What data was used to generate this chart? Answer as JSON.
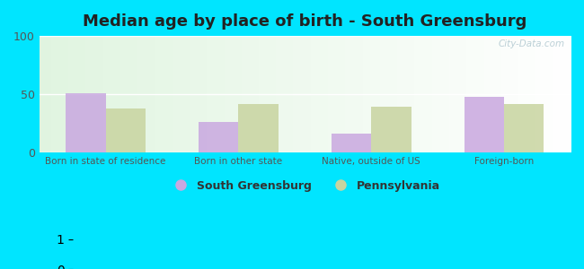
{
  "title": "Median age by place of birth - South Greensburg",
  "categories": [
    "Born in state of residence",
    "Born in other state",
    "Native, outside of US",
    "Foreign-born"
  ],
  "south_greensburg": [
    51,
    26,
    16,
    48
  ],
  "pennsylvania": [
    38,
    42,
    39,
    42
  ],
  "sg_color": "#c9a8e0",
  "pa_color": "#c8d4a0",
  "ylim": [
    0,
    100
  ],
  "yticks": [
    0,
    50,
    100
  ],
  "bg_color": "#00e5ff",
  "legend_sg": "South Greensburg",
  "legend_pa": "Pennsylvania",
  "bar_width": 0.3,
  "title_fontsize": 13,
  "watermark": "City-Data.com"
}
